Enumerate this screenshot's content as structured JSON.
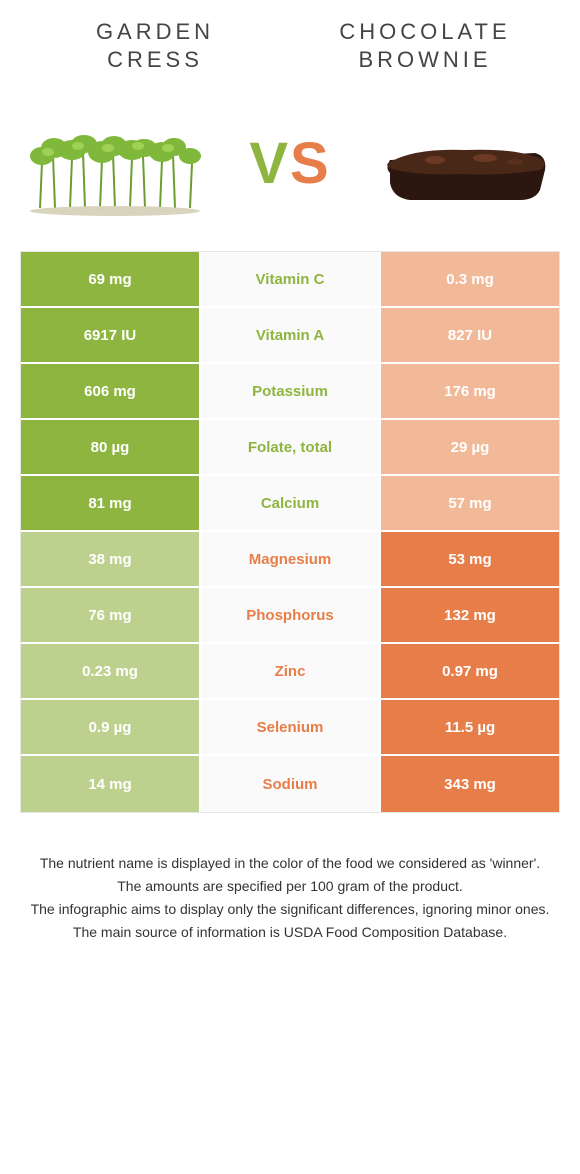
{
  "header": {
    "left_title_line1": "GARDEN",
    "left_title_line2": "CRESS",
    "right_title_line1": "CHOCOLATE",
    "right_title_line2": "BROWNIE"
  },
  "vs": {
    "v": "V",
    "s": "S"
  },
  "colors": {
    "left": "#8eb53f",
    "right": "#e77e4a",
    "left_dim": "#bdd18e",
    "right_dim": "#f2b999",
    "mid_bg": "#fafafa"
  },
  "rows": [
    {
      "nutrient": "Vitamin C",
      "left": "69 mg",
      "right": "0.3 mg",
      "winner": "left"
    },
    {
      "nutrient": "Vitamin A",
      "left": "6917 IU",
      "right": "827 IU",
      "winner": "left"
    },
    {
      "nutrient": "Potassium",
      "left": "606 mg",
      "right": "176 mg",
      "winner": "left"
    },
    {
      "nutrient": "Folate, total",
      "left": "80 µg",
      "right": "29 µg",
      "winner": "left"
    },
    {
      "nutrient": "Calcium",
      "left": "81 mg",
      "right": "57 mg",
      "winner": "left"
    },
    {
      "nutrient": "Magnesium",
      "left": "38 mg",
      "right": "53 mg",
      "winner": "right"
    },
    {
      "nutrient": "Phosphorus",
      "left": "76 mg",
      "right": "132 mg",
      "winner": "right"
    },
    {
      "nutrient": "Zinc",
      "left": "0.23 mg",
      "right": "0.97 mg",
      "winner": "right"
    },
    {
      "nutrient": "Selenium",
      "left": "0.9 µg",
      "right": "11.5 µg",
      "winner": "right"
    },
    {
      "nutrient": "Sodium",
      "left": "14 mg",
      "right": "343 mg",
      "winner": "right"
    }
  ],
  "footnotes": [
    "The nutrient name is displayed in the color of the food we considered as 'winner'.",
    "The amounts are specified per 100 gram of the product.",
    "The infographic aims to display only the significant differences, ignoring minor ones.",
    "The main source of information is USDA Food Composition Database."
  ]
}
